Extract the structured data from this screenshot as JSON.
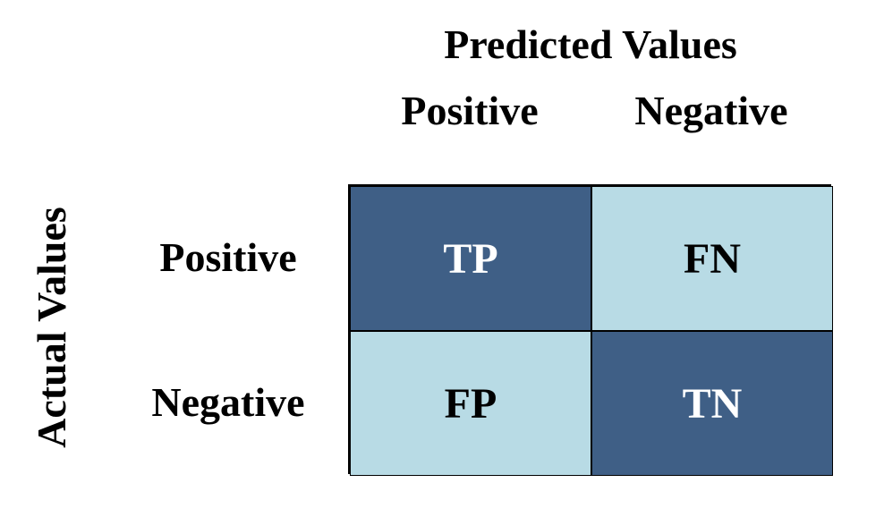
{
  "predicted_axis": {
    "title": "Predicted Values",
    "labels": [
      "Positive",
      "Negative"
    ]
  },
  "actual_axis": {
    "title": "Actual Values",
    "labels": [
      "Positive",
      "Negative"
    ]
  },
  "matrix": {
    "cells": [
      {
        "label": "TP",
        "shade": "dark"
      },
      {
        "label": "FN",
        "shade": "light"
      },
      {
        "label": "FP",
        "shade": "light"
      },
      {
        "label": "TN",
        "shade": "dark"
      }
    ]
  },
  "colors": {
    "dark": "#3f5f86",
    "light": "#b8dbe5"
  }
}
